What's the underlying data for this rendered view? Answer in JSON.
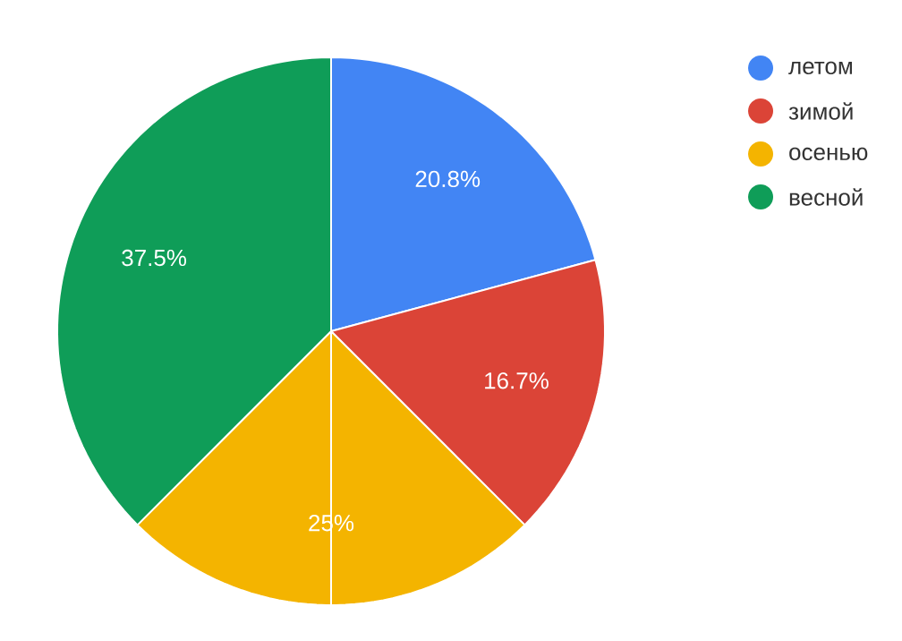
{
  "chart_data": {
    "type": "pie",
    "categories": [
      "летом",
      "зимой",
      "осенью",
      "весной"
    ],
    "values": [
      20.8,
      16.7,
      25,
      37.5
    ],
    "colors": [
      "#4285f4",
      "#db4437",
      "#f4b400",
      "#0f9d58"
    ],
    "value_labels": [
      "20.8%",
      "16.7%",
      "25%",
      "37.5%"
    ],
    "legend": "top right"
  }
}
